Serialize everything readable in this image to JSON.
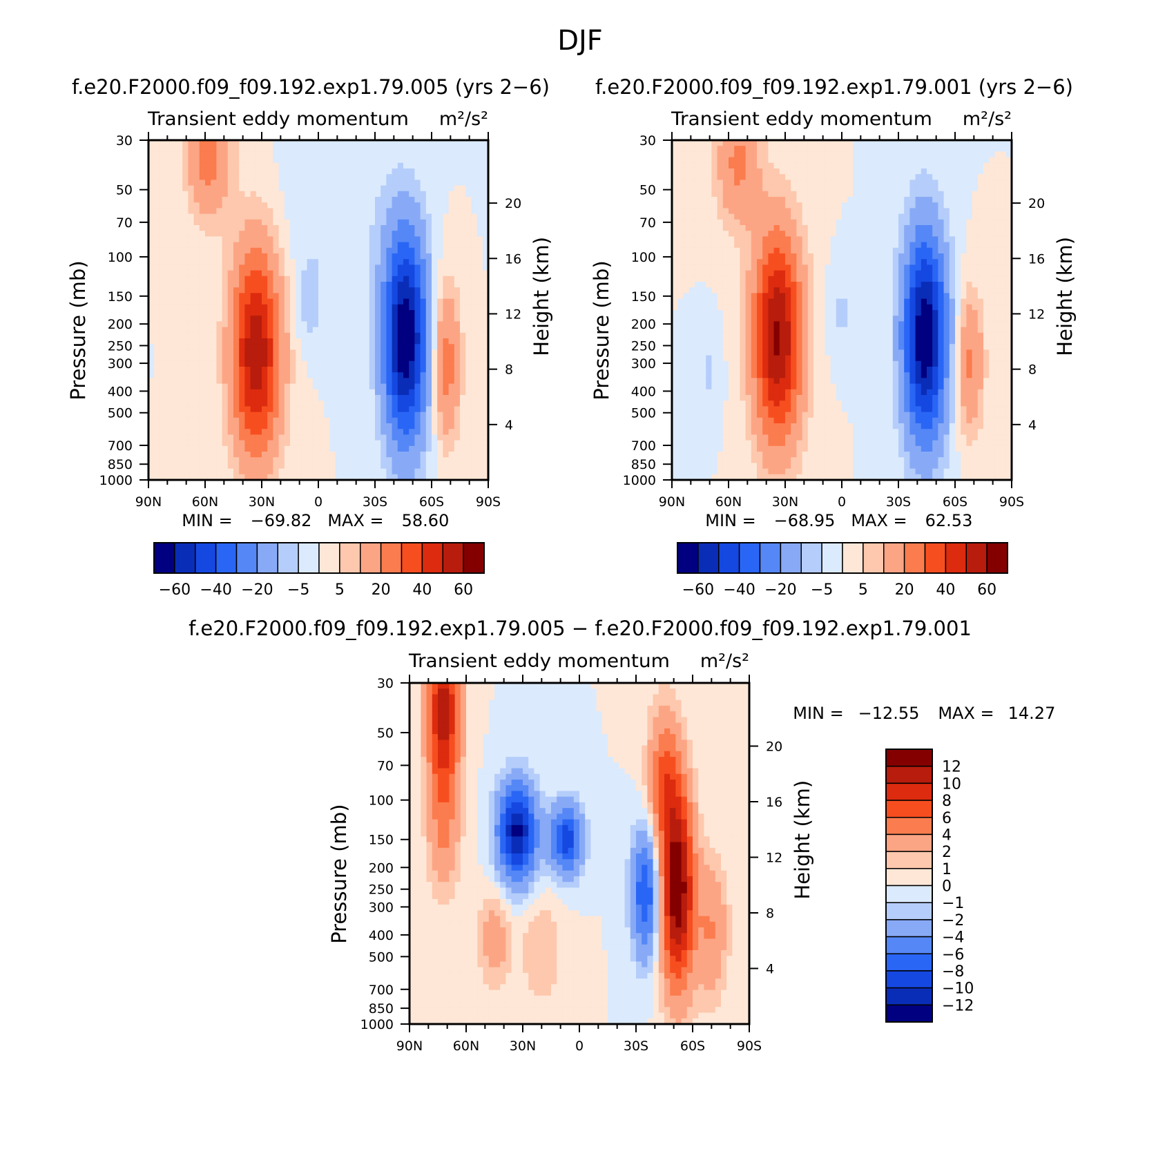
{
  "figure_title": "DJF",
  "palettes": {
    "main": [
      "#000080",
      "#0a2db8",
      "#1548e0",
      "#2a66f5",
      "#5587f6",
      "#88aaf6",
      "#b5cdfa",
      "#dbeafd",
      "#fee7d7",
      "#fdc8ad",
      "#fca585",
      "#fb7c4e",
      "#f74e20",
      "#dc2b0e",
      "#b71c0c",
      "#840000"
    ],
    "diff": [
      "#000080",
      "#0a2db8",
      "#1548e0",
      "#2a66f5",
      "#5587f6",
      "#88aaf6",
      "#b5cdfa",
      "#dbeafd",
      "#fee7d7",
      "#fdc8ad",
      "#fca585",
      "#fb7c4e",
      "#f74e20",
      "#dc2b0e",
      "#b71c0c",
      "#840000"
    ]
  },
  "panel_a": {
    "run_title": "f.e20.F2000.f09_f09.192.exp1.79.005 (yrs 2−6)",
    "subtitle": "Transient eddy momentum",
    "units": "m²/s²",
    "min_label": "MIN =",
    "min_value": "−69.82",
    "max_label": "MAX =",
    "max_value": "58.60"
  },
  "panel_b": {
    "run_title": "f.e20.F2000.f09_f09.192.exp1.79.001 (yrs 2−6)",
    "subtitle": "Transient eddy momentum",
    "units": "m²/s²",
    "min_label": "MIN =",
    "min_value": "−68.95",
    "max_label": "MAX =",
    "max_value": "62.53"
  },
  "panel_c": {
    "run_title": "f.e20.F2000.f09_f09.192.exp1.79.005 − f.e20.F2000.f09_f09.192.exp1.79.001",
    "subtitle": "Transient eddy momentum",
    "units": "m²/s²",
    "min_label": "MIN =",
    "min_value": "−12.55",
    "max_label": "MAX =",
    "max_value": "14.27"
  },
  "chart_data": [
    {
      "type": "heatmap",
      "title": "f.e20.F2000.f09_f09.192.exp1.79.005 (yrs 2−6)",
      "subtitle": "Transient eddy momentum",
      "xlabel": "",
      "ylabel": "Pressure (mb)",
      "y2label": "Height (km)",
      "xlim": [
        90,
        -90
      ],
      "ylim": [
        1000,
        30
      ],
      "y_scale": "log",
      "x_ticks": [
        90,
        60,
        30,
        0,
        -30,
        -60,
        -90
      ],
      "x_tick_labels": [
        "90N",
        "60N",
        "30N",
        "0",
        "30S",
        "60S",
        "90S"
      ],
      "y_ticks": [
        30,
        50,
        70,
        100,
        150,
        200,
        250,
        300,
        400,
        500,
        700,
        850,
        1000
      ],
      "y_tick_labels": [
        "30",
        "50",
        "70",
        "100",
        "150",
        "200",
        "250",
        "300",
        "400",
        "500",
        "700",
        "850",
        "1000"
      ],
      "y2_ticks": [
        20,
        16,
        12,
        8,
        4
      ],
      "y2_tick_labels": [
        "20",
        "16",
        "12",
        "8",
        "4"
      ],
      "colorbar_labels": [
        "−60",
        "−40",
        "−20",
        "−5",
        "5",
        "20",
        "40",
        "60"
      ],
      "min": -69.82,
      "max": 58.6,
      "features": [
        {
          "lat": 33,
          "p": 270,
          "amp": 58,
          "sx": 9,
          "sy": 0.75
        },
        {
          "lat": 58,
          "p": 35,
          "amp": 25,
          "sx": 8,
          "sy": 0.45
        },
        {
          "lat": -46,
          "p": 230,
          "amp": -70,
          "sx": 8,
          "sy": 0.75
        },
        {
          "lat": -68,
          "p": 300,
          "amp": 25,
          "sx": 5,
          "sy": 0.55
        },
        {
          "lat": 5,
          "p": 160,
          "amp": -8,
          "sx": 5,
          "sy": 0.3
        },
        {
          "lat": -10,
          "p": 60,
          "amp": -5,
          "sx": 20,
          "sy": 0.6
        }
      ]
    },
    {
      "type": "heatmap",
      "title": "f.e20.F2000.f09_f09.192.exp1.79.001 (yrs 2−6)",
      "subtitle": "Transient eddy momentum",
      "xlabel": "",
      "ylabel": "Pressure (mb)",
      "y2label": "Height (km)",
      "xlim": [
        90,
        -90
      ],
      "ylim": [
        1000,
        30
      ],
      "y_scale": "log",
      "x_ticks": [
        90,
        60,
        30,
        0,
        -30,
        -60,
        -90
      ],
      "x_tick_labels": [
        "90N",
        "60N",
        "30N",
        "0",
        "30S",
        "60S",
        "90S"
      ],
      "y_ticks": [
        30,
        50,
        70,
        100,
        150,
        200,
        250,
        300,
        400,
        500,
        700,
        850,
        1000
      ],
      "y_tick_labels": [
        "30",
        "50",
        "70",
        "100",
        "150",
        "200",
        "250",
        "300",
        "400",
        "500",
        "700",
        "850",
        "1000"
      ],
      "y2_ticks": [
        20,
        16,
        12,
        8,
        4
      ],
      "y2_tick_labels": [
        "20",
        "16",
        "12",
        "8",
        "4"
      ],
      "colorbar_labels": [
        "−60",
        "−40",
        "−20",
        "−5",
        "5",
        "20",
        "40",
        "60"
      ],
      "min": -68.95,
      "max": 62.53,
      "features": [
        {
          "lat": 34,
          "p": 230,
          "amp": 62,
          "sx": 9,
          "sy": 0.75
        },
        {
          "lat": 55,
          "p": 38,
          "amp": 22,
          "sx": 8,
          "sy": 0.45
        },
        {
          "lat": -44,
          "p": 230,
          "amp": -69,
          "sx": 8,
          "sy": 0.75
        },
        {
          "lat": -68,
          "p": 300,
          "amp": 22,
          "sx": 5,
          "sy": 0.5
        },
        {
          "lat": 0,
          "p": 180,
          "amp": -6,
          "sx": 5,
          "sy": 0.3
        },
        {
          "lat": 70,
          "p": 330,
          "amp": -6,
          "sx": 4,
          "sy": 0.3
        }
      ]
    },
    {
      "type": "heatmap",
      "title": "f.e20.F2000.f09_f09.192.exp1.79.005 − f.e20.F2000.f09_f09.192.exp1.79.001",
      "subtitle": "Transient eddy momentum",
      "xlabel": "",
      "ylabel": "Pressure (mb)",
      "y2label": "Height (km)",
      "xlim": [
        90,
        -90
      ],
      "ylim": [
        1000,
        30
      ],
      "y_scale": "log",
      "x_ticks": [
        90,
        60,
        30,
        0,
        -30,
        -60,
        -90
      ],
      "x_tick_labels": [
        "90N",
        "60N",
        "30N",
        "0",
        "30S",
        "60S",
        "90S"
      ],
      "y_ticks": [
        30,
        50,
        70,
        100,
        150,
        200,
        250,
        300,
        400,
        500,
        700,
        850,
        1000
      ],
      "y_tick_labels": [
        "30",
        "50",
        "70",
        "100",
        "150",
        "200",
        "250",
        "300",
        "400",
        "500",
        "700",
        "850",
        "1000"
      ],
      "y2_ticks": [
        20,
        16,
        12,
        8,
        4
      ],
      "y2_tick_labels": [
        "20",
        "16",
        "12",
        "8",
        "4"
      ],
      "colorbar_labels": [
        "12",
        "10",
        "8",
        "6",
        "4",
        "2",
        "1",
        "0",
        "−1",
        "−2",
        "−4",
        "−6",
        "−8",
        "−10",
        "−12"
      ],
      "min": -12.55,
      "max": 14.27,
      "features": [
        {
          "lat": 72,
          "p": 40,
          "amp": 11,
          "sx": 6,
          "sy": 0.55
        },
        {
          "lat": 72,
          "p": 130,
          "amp": 4,
          "sx": 6,
          "sy": 0.5
        },
        {
          "lat": 33,
          "p": 140,
          "amp": -12.5,
          "sx": 7,
          "sy": 0.35
        },
        {
          "lat": 7,
          "p": 150,
          "amp": -9,
          "sx": 6,
          "sy": 0.25
        },
        {
          "lat": -35,
          "p": 260,
          "amp": -8,
          "sx": 5,
          "sy": 0.45
        },
        {
          "lat": -52,
          "p": 250,
          "amp": 14,
          "sx": 6,
          "sy": 0.7
        },
        {
          "lat": -45,
          "p": 80,
          "amp": 6,
          "sx": 6,
          "sy": 0.5
        },
        {
          "lat": 45,
          "p": 420,
          "amp": 3,
          "sx": 6,
          "sy": 0.35
        },
        {
          "lat": 20,
          "p": 480,
          "amp": 2,
          "sx": 8,
          "sy": 0.4
        },
        {
          "lat": -70,
          "p": 380,
          "amp": 4,
          "sx": 6,
          "sy": 0.5
        }
      ]
    }
  ]
}
